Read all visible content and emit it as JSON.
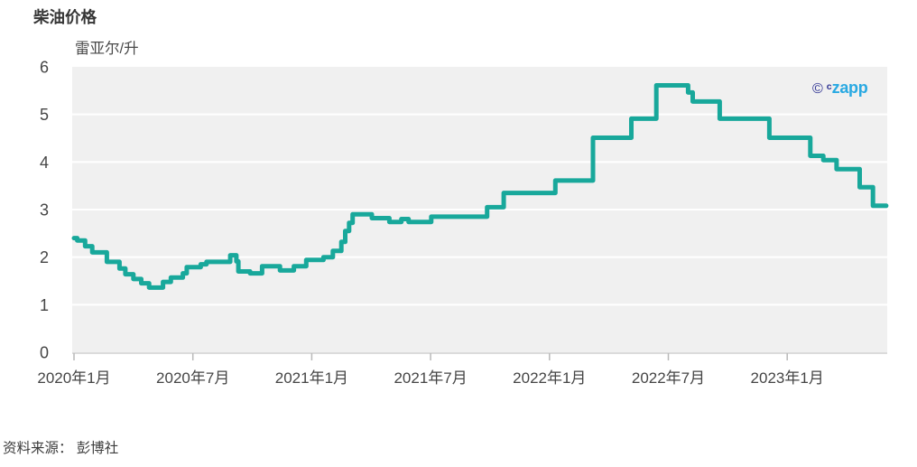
{
  "header": {
    "title": "柴油价格"
  },
  "chart_data": {
    "type": "line",
    "subtype": "step-after",
    "title": "柴油价格",
    "unit_label": "雷亚尔/升",
    "xlabel": "",
    "ylabel": "雷亚尔/升",
    "ylim": [
      0,
      6
    ],
    "yticks": [
      0,
      1,
      2,
      3,
      4,
      5,
      6
    ],
    "grid": "horizontal white gridlines on light gray panel",
    "legend_position": "none",
    "x_end": "2023-06-01",
    "xticks": [
      {
        "date": "2020-01-01",
        "label": "2020年1月"
      },
      {
        "date": "2020-07-01",
        "label": "2020年7月"
      },
      {
        "date": "2021-01-01",
        "label": "2021年1月"
      },
      {
        "date": "2021-07-01",
        "label": "2021年7月"
      },
      {
        "date": "2022-01-01",
        "label": "2022年1月"
      },
      {
        "date": "2022-07-01",
        "label": "2022年7月"
      },
      {
        "date": "2023-01-01",
        "label": "2023年1月"
      }
    ],
    "series": [
      {
        "name": "柴油价格",
        "color": "#18A89B",
        "points": [
          [
            "2020-01-01",
            2.4
          ],
          [
            "2020-01-06",
            2.35
          ],
          [
            "2020-01-18",
            2.23
          ],
          [
            "2020-01-29",
            2.1
          ],
          [
            "2020-02-21",
            1.9
          ],
          [
            "2020-03-10",
            1.76
          ],
          [
            "2020-03-19",
            1.64
          ],
          [
            "2020-04-01",
            1.54
          ],
          [
            "2020-04-13",
            1.45
          ],
          [
            "2020-04-25",
            1.36
          ],
          [
            "2020-05-16",
            1.48
          ],
          [
            "2020-05-28",
            1.57
          ],
          [
            "2020-06-16",
            1.66
          ],
          [
            "2020-06-22",
            1.79
          ],
          [
            "2020-07-13",
            1.85
          ],
          [
            "2020-07-22",
            1.9
          ],
          [
            "2020-08-28",
            2.04
          ],
          [
            "2020-09-07",
            1.91
          ],
          [
            "2020-09-10",
            1.7
          ],
          [
            "2020-09-28",
            1.66
          ],
          [
            "2020-10-16",
            1.81
          ],
          [
            "2020-11-13",
            1.72
          ],
          [
            "2020-12-04",
            1.81
          ],
          [
            "2020-12-23",
            1.94
          ],
          [
            "2021-01-19",
            2.0
          ],
          [
            "2021-02-03",
            2.13
          ],
          [
            "2021-02-16",
            2.32
          ],
          [
            "2021-02-22",
            2.55
          ],
          [
            "2021-02-28",
            2.72
          ],
          [
            "2021-03-03",
            2.9
          ],
          [
            "2021-04-02",
            2.82
          ],
          [
            "2021-04-29",
            2.74
          ],
          [
            "2021-05-17",
            2.8
          ],
          [
            "2021-05-28",
            2.74
          ],
          [
            "2021-07-02",
            2.85
          ],
          [
            "2021-09-27",
            3.05
          ],
          [
            "2021-10-22",
            3.35
          ],
          [
            "2022-01-10",
            3.61
          ],
          [
            "2022-03-07",
            4.51
          ],
          [
            "2022-05-05",
            4.91
          ],
          [
            "2022-06-13",
            5.61
          ],
          [
            "2022-08-01",
            5.46
          ],
          [
            "2022-08-08",
            5.27
          ],
          [
            "2022-09-19",
            4.91
          ],
          [
            "2022-12-04",
            4.51
          ],
          [
            "2023-02-06",
            4.13
          ],
          [
            "2023-02-26",
            4.04
          ],
          [
            "2023-03-16",
            3.85
          ],
          [
            "2023-04-21",
            3.47
          ],
          [
            "2023-05-11",
            3.08
          ]
        ]
      }
    ]
  },
  "logo": {
    "copyright": "©",
    "c": "c",
    "zapp": "zapp",
    "navy": "#2D3192",
    "blue": "#29A9E2"
  },
  "source": {
    "text": "资料来源： 彭博社"
  },
  "colors": {
    "line": "#18A89B",
    "plot_bg": "#F0F0F0",
    "grid": "#FFFFFF",
    "axis": "#CFCFCF",
    "tick": "#B9B9B9",
    "text": "#454545"
  }
}
